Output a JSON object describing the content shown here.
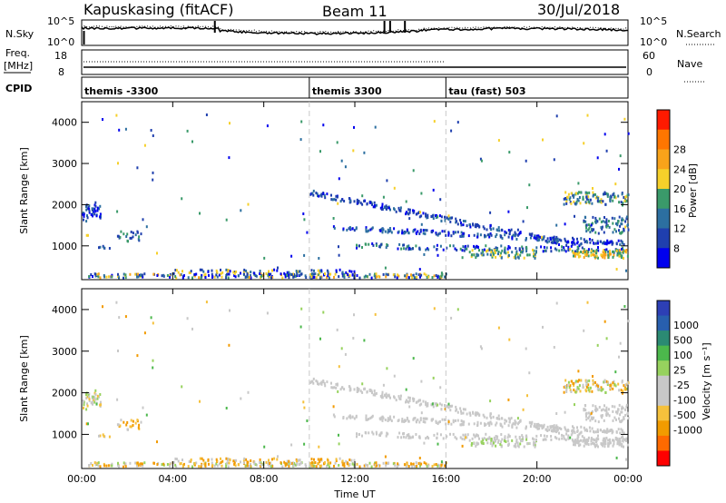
{
  "header": {
    "station": "Kapuskasing (fitACF)",
    "beam": "Beam 11",
    "date": "30/Jul/2018"
  },
  "panel_labels": {
    "nsky": "N.Sky",
    "freq_top": "Freq.",
    "freq_unit": "[MHz]",
    "cpid": "CPID",
    "nsearch": "N.Search",
    "nave": "Nave"
  },
  "nsky_axis": {
    "left_top": "10^5",
    "left_bottom": "10^0",
    "right_top": "10^5",
    "right_bottom": "10^0"
  },
  "freq_axis": {
    "left_top": "18",
    "left_bottom": "8",
    "right_top": "60",
    "right_bottom": "0"
  },
  "cpid_segments": [
    {
      "label": "themis -3300",
      "start_hour": 0,
      "end_hour": 10
    },
    {
      "label": "themis 3300",
      "start_hour": 10,
      "end_hour": 16
    },
    {
      "label": "tau (fast) 503",
      "start_hour": 16,
      "end_hour": 24
    }
  ],
  "colorbars": {
    "power": {
      "label": "Power [dB]",
      "colors": [
        "#0000ee",
        "#1f3fae",
        "#2c6fa0",
        "#3a9a6a",
        "#f6d02a",
        "#f9a31a",
        "#ff7600",
        "#ff1a00"
      ],
      "ticks": [
        "8",
        "12",
        "16",
        "20",
        "24",
        "28"
      ]
    },
    "velocity": {
      "label": "Velocity [m s⁻¹]",
      "colors": [
        "#ff0000",
        "#ff6a00",
        "#f29b00",
        "#f5c13c",
        "#c8c8c8",
        "#c8c8c8",
        "#97d25e",
        "#4cb84c",
        "#2b8a73",
        "#285fae",
        "#2d3fb5"
      ],
      "ticks": [
        "1000",
        "500",
        "100",
        "25",
        "-25",
        "-100",
        "-500",
        "-1000"
      ]
    }
  },
  "chart_data": [
    {
      "type": "heatmap",
      "name": "power",
      "ylabel": "Slant Range [km]",
      "xlim": [
        0,
        24
      ],
      "ylim": [
        180,
        4500
      ],
      "x_ticks": [
        "00:00",
        "04:00",
        "08:00",
        "12:00",
        "16:00",
        "20:00",
        "00:00"
      ],
      "y_ticks": [
        1000,
        2000,
        3000,
        4000
      ],
      "boundaries_hours": [
        10,
        16
      ]
    },
    {
      "type": "heatmap",
      "name": "velocity",
      "xlabel": "Time UT",
      "ylabel": "Slant Range [km]",
      "xlim": [
        0,
        24
      ],
      "ylim": [
        180,
        4500
      ],
      "x_ticks": [
        "00:00",
        "04:00",
        "08:00",
        "12:00",
        "16:00",
        "20:00",
        "00:00"
      ],
      "y_ticks": [
        1000,
        2000,
        3000,
        4000
      ],
      "boundaries_hours": [
        10,
        16
      ]
    }
  ]
}
